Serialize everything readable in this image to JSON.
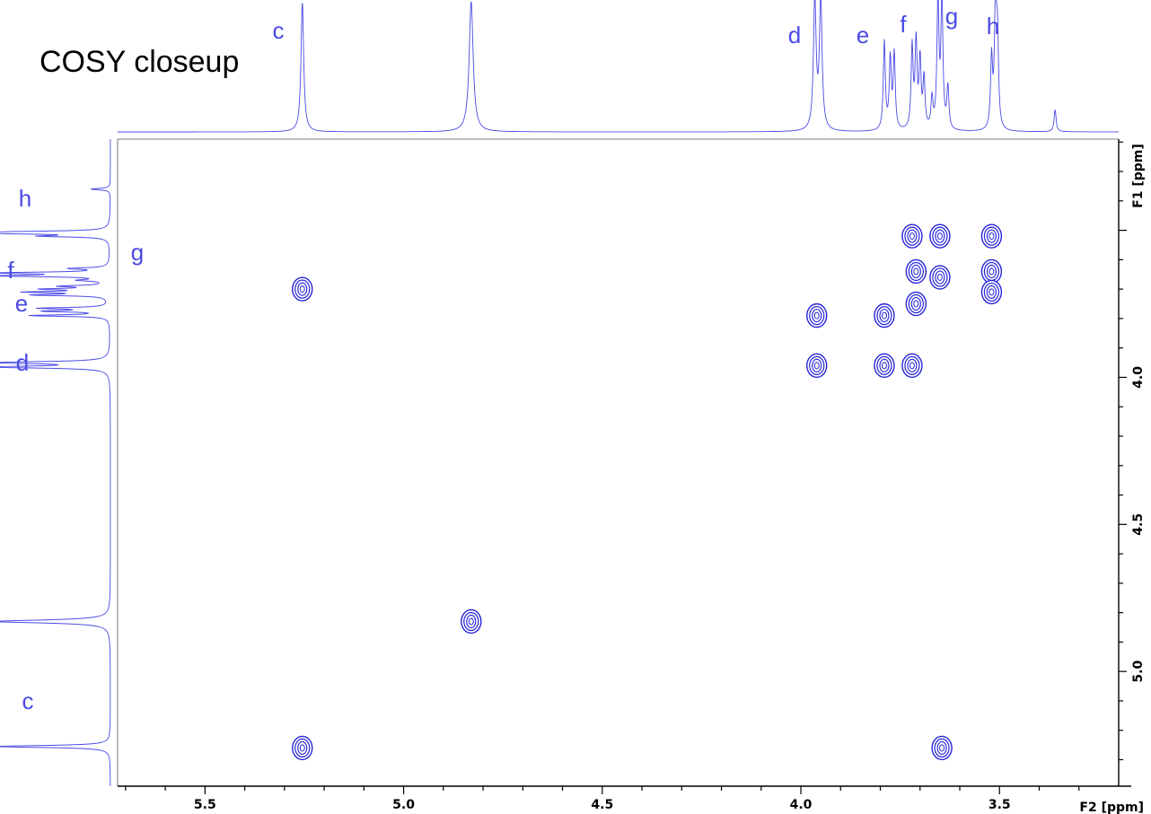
{
  "title": "COSY closeup",
  "colors": {
    "spectrum": "#4a4ae6",
    "contour": "#2424d8",
    "axis": "#000000"
  },
  "chart_data": {
    "type": "scatter",
    "plot_kind": "2D NMR COSY contour plot",
    "title": "COSY closeup",
    "xlabel": "F2 [ppm]",
    "ylabel": "F1 [ppm]",
    "xlim": [
      5.72,
      3.2
    ],
    "ylim": [
      3.19,
      5.39
    ],
    "x_ticks": [
      {
        "value": 5.5,
        "label": "5.5"
      },
      {
        "value": 5.0,
        "label": "5.0"
      },
      {
        "value": 4.5,
        "label": "4.5"
      },
      {
        "value": 4.0,
        "label": "4.0"
      },
      {
        "value": 3.5,
        "label": "3.5"
      }
    ],
    "y_ticks": [
      {
        "value": 4.0,
        "label": "4.0"
      },
      {
        "value": 4.5,
        "label": "4.5"
      },
      {
        "value": 5.0,
        "label": "5.0"
      }
    ],
    "peak_labels_top": [
      {
        "label": "c",
        "ppm": 5.26
      },
      {
        "label": "d",
        "ppm": 3.96
      },
      {
        "label": "e",
        "ppm": 3.79
      },
      {
        "label": "f",
        "ppm": 3.71
      },
      {
        "label": "g",
        "ppm": 3.64
      },
      {
        "label": "h",
        "ppm": 3.52
      }
    ],
    "peak_labels_left": [
      {
        "label": "h",
        "ppm": 3.52
      },
      {
        "label": "g",
        "ppm": 3.64
      },
      {
        "label": "f",
        "ppm": 3.71
      },
      {
        "label": "e",
        "ppm": 3.79
      },
      {
        "label": "d",
        "ppm": 3.96
      },
      {
        "label": "c",
        "ppm": 5.26
      }
    ],
    "projection_peaks": [
      {
        "ppm": 5.255,
        "height": 1.3,
        "width": 0.004
      },
      {
        "ppm": 4.83,
        "height": 1.3,
        "width": 0.006
      },
      {
        "ppm": 3.965,
        "height": 1.3,
        "width": 0.004
      },
      {
        "ppm": 3.95,
        "height": 1.3,
        "width": 0.004
      },
      {
        "ppm": 3.79,
        "height": 0.88,
        "width": 0.003
      },
      {
        "ppm": 3.775,
        "height": 0.7,
        "width": 0.003
      },
      {
        "ppm": 3.765,
        "height": 0.75,
        "width": 0.003
      },
      {
        "ppm": 3.72,
        "height": 0.82,
        "width": 0.003
      },
      {
        "ppm": 3.71,
        "height": 0.86,
        "width": 0.003
      },
      {
        "ppm": 3.7,
        "height": 0.68,
        "width": 0.003
      },
      {
        "ppm": 3.69,
        "height": 0.5,
        "width": 0.003
      },
      {
        "ppm": 3.67,
        "height": 0.3,
        "width": 0.003
      },
      {
        "ppm": 3.655,
        "height": 1.3,
        "width": 0.003
      },
      {
        "ppm": 3.645,
        "height": 1.3,
        "width": 0.003
      },
      {
        "ppm": 3.63,
        "height": 0.42,
        "width": 0.003
      },
      {
        "ppm": 3.52,
        "height": 0.7,
        "width": 0.003
      },
      {
        "ppm": 3.51,
        "height": 1.3,
        "width": 0.003
      },
      {
        "ppm": 3.505,
        "height": 0.82,
        "width": 0.003
      },
      {
        "ppm": 3.36,
        "height": 0.22,
        "width": 0.003
      }
    ],
    "cross_peaks": [
      {
        "f2": 5.255,
        "f1": 3.7
      },
      {
        "f2": 5.255,
        "f1": 5.26
      },
      {
        "f2": 4.83,
        "f1": 4.83
      },
      {
        "f2": 3.96,
        "f1": 3.79
      },
      {
        "f2": 3.96,
        "f1": 3.96
      },
      {
        "f2": 3.79,
        "f1": 3.79
      },
      {
        "f2": 3.79,
        "f1": 3.96
      },
      {
        "f2": 3.72,
        "f1": 3.96
      },
      {
        "f2": 3.71,
        "f1": 3.64
      },
      {
        "f2": 3.71,
        "f1": 3.75
      },
      {
        "f2": 3.72,
        "f1": 3.52
      },
      {
        "f2": 3.65,
        "f1": 3.52
      },
      {
        "f2": 3.65,
        "f1": 3.66
      },
      {
        "f2": 3.645,
        "f1": 5.26
      },
      {
        "f2": 3.52,
        "f1": 3.52
      },
      {
        "f2": 3.52,
        "f1": 3.64
      },
      {
        "f2": 3.52,
        "f1": 3.71
      }
    ]
  }
}
